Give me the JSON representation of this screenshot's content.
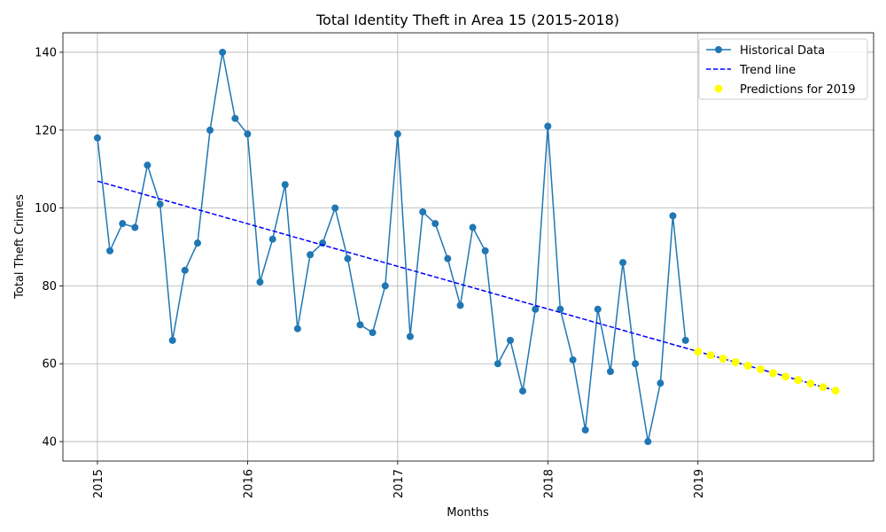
{
  "chart_data": {
    "type": "line",
    "title": "Total Identity Theft in Area 15 (2015-2018)",
    "xlabel": "Months",
    "ylabel": "Total Theft Crimes",
    "xlim": [
      2014.77,
      2020.17
    ],
    "ylim": [
      35,
      145
    ],
    "x_ticks": [
      2015,
      2016,
      2017,
      2018,
      2019
    ],
    "x_tick_labels": [
      "2015",
      "2016",
      "2017",
      "2018",
      "2019"
    ],
    "y_ticks": [
      40,
      60,
      80,
      100,
      120,
      140
    ],
    "y_tick_labels": [
      "40",
      "60",
      "80",
      "100",
      "120",
      "140"
    ],
    "grid": true,
    "legend": "top-right",
    "series": [
      {
        "name": "Historical Data",
        "kind": "line-marker",
        "color": "#1f77b4",
        "x": [
          2015.0,
          2015.083,
          2015.167,
          2015.25,
          2015.333,
          2015.417,
          2015.5,
          2015.583,
          2015.667,
          2015.75,
          2015.833,
          2015.917,
          2016.0,
          2016.083,
          2016.167,
          2016.25,
          2016.333,
          2016.417,
          2016.5,
          2016.583,
          2016.667,
          2016.75,
          2016.833,
          2016.917,
          2017.0,
          2017.083,
          2017.167,
          2017.25,
          2017.333,
          2017.417,
          2017.5,
          2017.583,
          2017.667,
          2017.75,
          2017.833,
          2017.917,
          2018.0,
          2018.083,
          2018.167,
          2018.25,
          2018.333,
          2018.417,
          2018.5,
          2018.583,
          2018.667,
          2018.75,
          2018.833,
          2018.917
        ],
        "y": [
          118,
          89,
          96,
          95,
          111,
          101,
          66,
          84,
          91,
          120,
          140,
          123,
          119,
          81,
          92,
          106,
          69,
          88,
          91,
          100,
          87,
          70,
          68,
          80,
          119,
          67,
          99,
          96,
          87,
          75,
          95,
          89,
          60,
          66,
          53,
          74,
          121,
          74,
          61,
          43,
          74,
          58,
          86,
          60,
          40,
          55,
          98,
          66
        ]
      },
      {
        "name": "Trend line",
        "kind": "dashed-line",
        "color": "#0000ff",
        "x": [
          2015.0,
          2019.917
        ],
        "y": [
          106.9,
          53.1
        ]
      },
      {
        "name": "Predictions for 2019",
        "kind": "scatter",
        "color": "#ffff00",
        "x": [
          2019.0,
          2019.083,
          2019.167,
          2019.25,
          2019.333,
          2019.417,
          2019.5,
          2019.583,
          2019.667,
          2019.75,
          2019.833,
          2019.917
        ],
        "y": [
          63.1,
          62.2,
          61.3,
          60.4,
          59.5,
          58.6,
          57.6,
          56.7,
          55.8,
          54.9,
          54.0,
          53.1
        ]
      }
    ]
  }
}
